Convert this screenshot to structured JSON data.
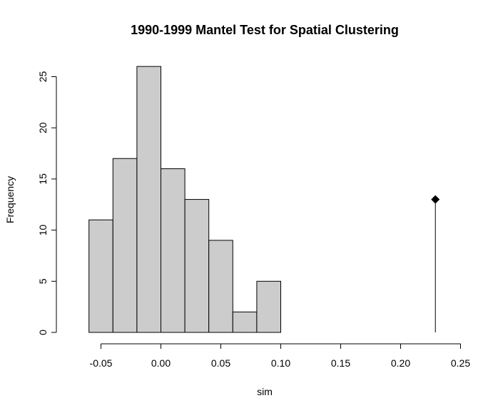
{
  "chart_data": {
    "type": "bar",
    "title": "1990-1999 Mantel Test for Spatial Clustering",
    "xlabel": "sim",
    "ylabel": "Frequency",
    "xlim": [
      -0.06,
      0.25
    ],
    "ylim": [
      0,
      26
    ],
    "bins": [
      {
        "start": -0.06,
        "end": -0.04,
        "count": 11
      },
      {
        "start": -0.04,
        "end": -0.02,
        "count": 17
      },
      {
        "start": -0.02,
        "end": 0.0,
        "count": 26
      },
      {
        "start": 0.0,
        "end": 0.02,
        "count": 16
      },
      {
        "start": 0.02,
        "end": 0.04,
        "count": 13
      },
      {
        "start": 0.04,
        "end": 0.06,
        "count": 9
      },
      {
        "start": 0.06,
        "end": 0.08,
        "count": 2
      },
      {
        "start": 0.08,
        "end": 0.1,
        "count": 5
      }
    ],
    "x_ticks": [
      {
        "value": -0.05,
        "label": "-0.05"
      },
      {
        "value": 0.0,
        "label": "0.00"
      },
      {
        "value": 0.05,
        "label": "0.05"
      },
      {
        "value": 0.1,
        "label": "0.10"
      },
      {
        "value": 0.15,
        "label": "0.15"
      },
      {
        "value": 0.2,
        "label": "0.20"
      },
      {
        "value": 0.25,
        "label": "0.25"
      }
    ],
    "y_ticks": [
      {
        "value": 0,
        "label": "0"
      },
      {
        "value": 5,
        "label": "5"
      },
      {
        "value": 10,
        "label": "10"
      },
      {
        "value": 15,
        "label": "15"
      },
      {
        "value": 20,
        "label": "20"
      },
      {
        "value": 25,
        "label": "25"
      }
    ],
    "observed": {
      "x": 0.229,
      "y": 13
    },
    "grid": false,
    "colors": {
      "bar_fill": "#cccccc",
      "bar_stroke": "#000000",
      "marker": "#000000"
    }
  }
}
